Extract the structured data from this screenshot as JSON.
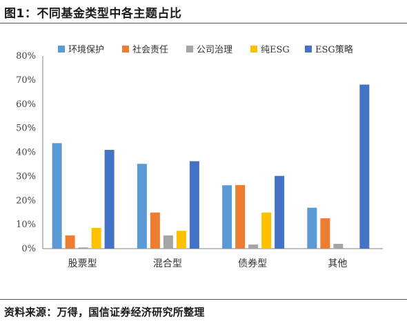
{
  "figure": {
    "title": "图1：不同基金类型中各主题占比",
    "source": "资料来源：万得，国信证券经济研究所整理"
  },
  "chart_data": {
    "type": "bar",
    "categories": [
      "股票型",
      "混合型",
      "债券型",
      "其他"
    ],
    "series": [
      {
        "name": "环境保护",
        "color": "#5b9bd5",
        "values": [
          43.8,
          35.2,
          26.3,
          17.0
        ]
      },
      {
        "name": "社会责任",
        "color": "#ed7d31",
        "values": [
          5.5,
          15.0,
          26.4,
          12.6
        ]
      },
      {
        "name": "公司治理",
        "color": "#a5a5a5",
        "values": [
          0.5,
          5.5,
          1.7,
          2.0
        ]
      },
      {
        "name": "纯ESG",
        "color": "#ffc000",
        "values": [
          8.6,
          7.4,
          15.0,
          0.0
        ]
      },
      {
        "name": "ESG策略",
        "color": "#4472c4",
        "values": [
          41.0,
          36.3,
          30.2,
          68.1
        ]
      }
    ],
    "ylim": [
      0,
      80
    ],
    "yticks": [
      "0%",
      "10%",
      "20%",
      "30%",
      "40%",
      "50%",
      "60%",
      "70%",
      "80%"
    ],
    "legend": "top",
    "grid": false
  }
}
